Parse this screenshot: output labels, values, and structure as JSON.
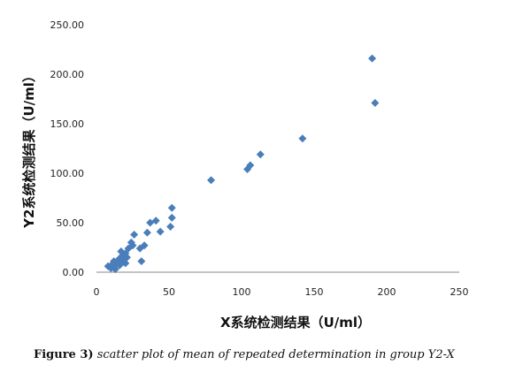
{
  "chart_data": {
    "type": "scatter",
    "xlabel": "X系统检测结果（U/ml）",
    "ylabel": "Y2系统检测结果（U/ml）",
    "xlim": [
      0,
      250
    ],
    "ylim": [
      0,
      250
    ],
    "x_ticks": [
      "0",
      "50",
      "100",
      "150",
      "200",
      "250"
    ],
    "y_ticks": [
      "0.00",
      "50.00",
      "100.00",
      "150.00",
      "200.00",
      "250.00"
    ],
    "grid": false,
    "marker": "diamond",
    "color": "#4a7ebb",
    "points": [
      {
        "x": 8,
        "y": 6
      },
      {
        "x": 10,
        "y": 4
      },
      {
        "x": 11,
        "y": 8
      },
      {
        "x": 12,
        "y": 11
      },
      {
        "x": 12,
        "y": 5
      },
      {
        "x": 13,
        "y": 3
      },
      {
        "x": 14,
        "y": 9
      },
      {
        "x": 15,
        "y": 12
      },
      {
        "x": 16,
        "y": 7
      },
      {
        "x": 16,
        "y": 14
      },
      {
        "x": 17,
        "y": 21
      },
      {
        "x": 18,
        "y": 10
      },
      {
        "x": 18,
        "y": 17
      },
      {
        "x": 19,
        "y": 12
      },
      {
        "x": 20,
        "y": 19
      },
      {
        "x": 20,
        "y": 9
      },
      {
        "x": 21,
        "y": 15
      },
      {
        "x": 22,
        "y": 24
      },
      {
        "x": 24,
        "y": 30
      },
      {
        "x": 25,
        "y": 27
      },
      {
        "x": 26,
        "y": 38
      },
      {
        "x": 30,
        "y": 24
      },
      {
        "x": 31,
        "y": 11
      },
      {
        "x": 33,
        "y": 27
      },
      {
        "x": 35,
        "y": 40
      },
      {
        "x": 37,
        "y": 50
      },
      {
        "x": 41,
        "y": 52
      },
      {
        "x": 44,
        "y": 41
      },
      {
        "x": 51,
        "y": 46
      },
      {
        "x": 52,
        "y": 55
      },
      {
        "x": 52,
        "y": 65
      },
      {
        "x": 79,
        "y": 93
      },
      {
        "x": 104,
        "y": 104
      },
      {
        "x": 106,
        "y": 108
      },
      {
        "x": 113,
        "y": 119
      },
      {
        "x": 142,
        "y": 135
      },
      {
        "x": 190,
        "y": 216
      },
      {
        "x": 192,
        "y": 171
      }
    ]
  },
  "caption": {
    "lead": "Figure 3)",
    "text": " scatter plot of mean of repeated determination in group Y2-X"
  }
}
